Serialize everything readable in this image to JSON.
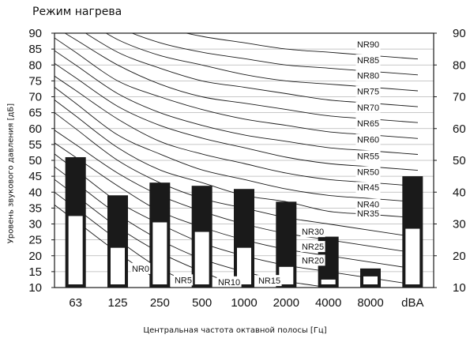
{
  "chart_data": {
    "type": "bar",
    "title": "Режим нагрева",
    "xlabel": "Центральная частота октавной полосы [Гц]",
    "ylabel": "Уровень звукового давления [дБ]",
    "ylim": [
      10,
      90
    ],
    "yticks": [
      10,
      15,
      20,
      25,
      30,
      35,
      40,
      45,
      50,
      55,
      60,
      65,
      70,
      75,
      80,
      85,
      90
    ],
    "yticks_right": [
      10,
      20,
      30,
      40,
      50,
      60,
      70,
      80,
      90
    ],
    "categories": [
      "63",
      "125",
      "250",
      "500",
      "1000",
      "2000",
      "4000",
      "8000",
      "dBA"
    ],
    "series": [
      {
        "values": [
          51,
          39,
          43,
          42,
          41,
          37,
          26,
          16,
          45
        ],
        "color": "#1a1a1a"
      },
      {
        "values": [
          32.5,
          22.5,
          30.5,
          27.5,
          22.5,
          16.5,
          12.5,
          13.5,
          28.5
        ],
        "color": "#ffffff"
      }
    ],
    "nr_curves": [
      {
        "label": "NR90",
        "values": [
          103,
          96,
          92,
          89,
          87,
          85,
          84,
          83
        ]
      },
      {
        "label": "NR85",
        "values": [
          100,
          92,
          87,
          84,
          82,
          80,
          79,
          78
        ]
      },
      {
        "label": "NR80",
        "values": [
          96,
          88,
          83,
          80,
          77,
          75,
          74,
          73
        ]
      },
      {
        "label": "NR75",
        "values": [
          92,
          84,
          79,
          75,
          73,
          71,
          69,
          68
        ]
      },
      {
        "label": "NR70",
        "values": [
          88,
          80,
          74,
          70,
          68,
          66,
          64,
          63
        ]
      },
      {
        "label": "NR65",
        "values": [
          84,
          75,
          70,
          66,
          63,
          61,
          59,
          58
        ]
      },
      {
        "label": "NR60",
        "values": [
          80,
          71,
          65,
          61,
          58,
          56,
          54,
          53
        ]
      },
      {
        "label": "NR55",
        "values": [
          76,
          67,
          61,
          57,
          54,
          51,
          49,
          48
        ]
      },
      {
        "label": "NR50",
        "values": [
          72,
          63,
          56,
          52,
          49,
          46,
          44,
          43
        ]
      },
      {
        "label": "NR45",
        "values": [
          68,
          58,
          52,
          47,
          44,
          41,
          39,
          38
        ]
      },
      {
        "label": "NR40",
        "values": [
          64,
          54,
          47,
          43,
          39,
          37,
          34,
          33
        ]
      },
      {
        "label": "NR35",
        "values": [
          60,
          50,
          43,
          38,
          35,
          32,
          30,
          28
        ]
      },
      {
        "label": "NR30",
        "values": [
          55,
          46,
          39,
          34,
          30,
          27,
          25,
          23
        ]
      },
      {
        "label": "NR25",
        "values": [
          51,
          42,
          34,
          29,
          25,
          22,
          20,
          18
        ]
      },
      {
        "label": "NR20",
        "values": [
          47,
          37,
          30,
          24,
          20,
          17,
          15,
          13
        ]
      },
      {
        "label": "NR15",
        "values": [
          43,
          33,
          25,
          19,
          15,
          12,
          10,
          8
        ]
      },
      {
        "label": "NR10",
        "values": [
          39,
          29,
          21,
          15,
          10,
          7,
          5,
          3
        ]
      },
      {
        "label": "NR5",
        "values": [
          35,
          25,
          16,
          10,
          5,
          2,
          0,
          -1
        ]
      },
      {
        "label": "NR0",
        "values": [
          31,
          21,
          12,
          5,
          0,
          -3,
          -5,
          -7
        ]
      }
    ],
    "grid": true
  }
}
